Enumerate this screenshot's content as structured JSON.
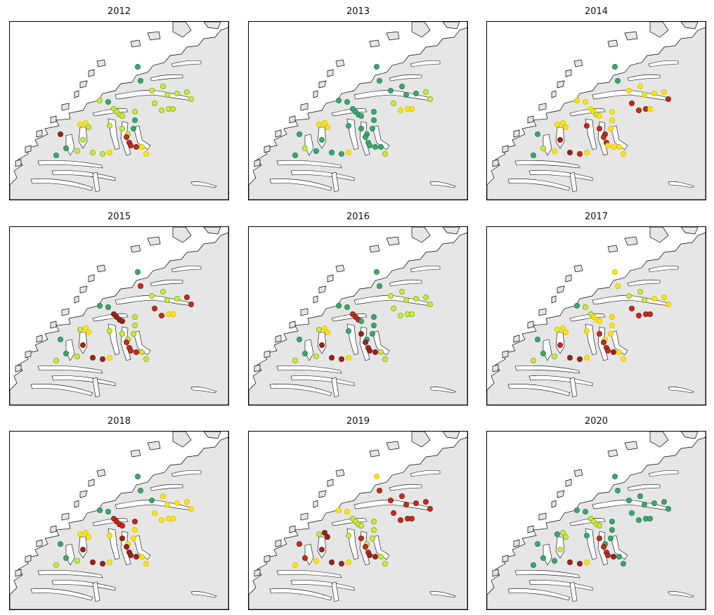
{
  "figure": {
    "colors": {
      "land": "#e6e6e6",
      "sea": "#ffffff",
      "coastline": "#000000",
      "green": "#3aa86b",
      "lime": "#c9ec3c",
      "yellow": "#ffe600",
      "red": "#c92a1a",
      "darkred": "#9a2418"
    },
    "panels": [
      {
        "year": "2012",
        "stations": [
          "green",
          "green",
          "lime",
          "lime",
          "lime",
          "lime",
          "lime",
          "lime",
          "lime",
          "lime",
          "lime",
          "lime",
          "lime",
          "green",
          "lime",
          "lime",
          "lime",
          "lime",
          "lime",
          "green",
          "green",
          "lime",
          "lime",
          "lime",
          "red",
          "red",
          "red",
          "red",
          "yellow",
          "yellow",
          "yellow",
          "yellow",
          "lime",
          "lime",
          "lime",
          "lime",
          "darkred",
          "green",
          "green",
          "lime",
          "yellow"
        ]
      },
      {
        "year": "2013",
        "stations": [
          "green",
          "green",
          "green",
          "green",
          "green",
          "green",
          "lime",
          "lime",
          "lime",
          "yellow",
          "yellow",
          "yellow",
          "green",
          "green",
          "green",
          "green",
          "green",
          "green",
          "green",
          "green",
          "green",
          "green",
          "green",
          "green",
          "green",
          "green",
          "green",
          "green",
          "green",
          "lime",
          "yellow",
          "yellow",
          "yellow",
          "green",
          "green",
          "green",
          "green",
          "lime",
          "green",
          "green",
          "yellow"
        ]
      },
      {
        "year": "2014",
        "stations": [
          "green",
          "green",
          "yellow",
          "yellow",
          "yellow",
          "yellow",
          "yellow",
          "red",
          "red",
          "red",
          "red",
          "yellow",
          "yellow",
          "yellow",
          "yellow",
          "yellow",
          "lime",
          "yellow",
          "yellow",
          "yellow",
          "yellow",
          "red",
          "red",
          "red",
          "red",
          "red",
          "yellow",
          "yellow",
          "yellow",
          "yellow",
          "yellow",
          "yellow",
          "yellow",
          "darkred",
          "darkred",
          "red",
          "green",
          "lime",
          "green",
          "yellow",
          "yellow"
        ]
      },
      {
        "year": "2015",
        "stations": [
          "green",
          "red",
          "lime",
          "lime",
          "lime",
          "lime",
          "red",
          "red",
          "red",
          "red",
          "yellow",
          "yellow",
          "green",
          "green",
          "darkred",
          "darkred",
          "darkred",
          "darkred",
          "lime",
          "lime",
          "lime",
          "lime",
          "lime",
          "lime",
          "red",
          "red",
          "red",
          "red",
          "lime",
          "lime",
          "lime",
          "yellow",
          "yellow",
          "darkred",
          "darkred",
          "darkred",
          "green",
          "green",
          "lime",
          "lime",
          "yellow"
        ]
      },
      {
        "year": "2016",
        "stations": [
          "green",
          "green",
          "lime",
          "lime",
          "lime",
          "lime",
          "lime",
          "lime",
          "lime",
          "lime",
          "lime",
          "lime",
          "green",
          "green",
          "red",
          "red",
          "red",
          "green",
          "green",
          "green",
          "green",
          "green",
          "green",
          "darkred",
          "darkred",
          "darkred",
          "darkred",
          "darkred",
          "lime",
          "lime",
          "lime",
          "yellow",
          "yellow",
          "darkred",
          "darkred",
          "darkred",
          "green",
          "green",
          "lime",
          "lime",
          "yellow"
        ]
      },
      {
        "year": "2017",
        "stations": [
          "yellow",
          "yellow",
          "lime",
          "lime",
          "lime",
          "yellow",
          "yellow",
          "yellow",
          "red",
          "red",
          "red",
          "red",
          "green",
          "lime",
          "lime",
          "yellow",
          "yellow",
          "yellow",
          "yellow",
          "yellow",
          "yellow",
          "yellow",
          "yellow",
          "red",
          "red",
          "red",
          "red",
          "darkred",
          "yellow",
          "yellow",
          "yellow",
          "yellow",
          "yellow",
          "red",
          "darkred",
          "darkred",
          "green",
          "green",
          "lime",
          "lime",
          "yellow"
        ]
      },
      {
        "year": "2018",
        "stations": [
          "green",
          "green",
          "green",
          "yellow",
          "yellow",
          "yellow",
          "yellow",
          "yellow",
          "yellow",
          "yellow",
          "yellow",
          "yellow",
          "green",
          "green",
          "red",
          "red",
          "red",
          "red",
          "red",
          "yellow",
          "yellow",
          "yellow",
          "yellow",
          "darkred",
          "darkred",
          "darkred",
          "darkred",
          "darkred",
          "yellow",
          "yellow",
          "yellow",
          "yellow",
          "yellow",
          "darkred",
          "darkred",
          "darkred",
          "green",
          "green",
          "lime",
          "lime",
          "yellow"
        ]
      },
      {
        "year": "2019",
        "stations": [
          "yellow",
          "red",
          "red",
          "red",
          "red",
          "red",
          "red",
          "red",
          "red",
          "red",
          "red",
          "red",
          "yellow",
          "yellow",
          "lime",
          "lime",
          "lime",
          "lime",
          "lime",
          "lime",
          "lime",
          "lime",
          "lime",
          "red",
          "red",
          "red",
          "darkred",
          "darkred",
          "lime",
          "lime",
          "lime",
          "darkred",
          "darkred",
          "darkred",
          "darkred",
          "darkred",
          "red",
          "red",
          "yellow",
          "yellow",
          "yellow"
        ]
      },
      {
        "year": "2020",
        "stations": [
          "green",
          "green",
          "green",
          "green",
          "green",
          "green",
          "green",
          "green",
          "green",
          "green",
          "green",
          "green",
          "green",
          "green",
          "lime",
          "lime",
          "lime",
          "lime",
          "green",
          "green",
          "green",
          "green",
          "green",
          "red",
          "red",
          "red",
          "red",
          "darkred",
          "green",
          "green",
          "green",
          "lime",
          "lime",
          "lime",
          "darkred",
          "darkred",
          "green",
          "green",
          "green",
          "green",
          "yellow"
        ]
      }
    ]
  }
}
